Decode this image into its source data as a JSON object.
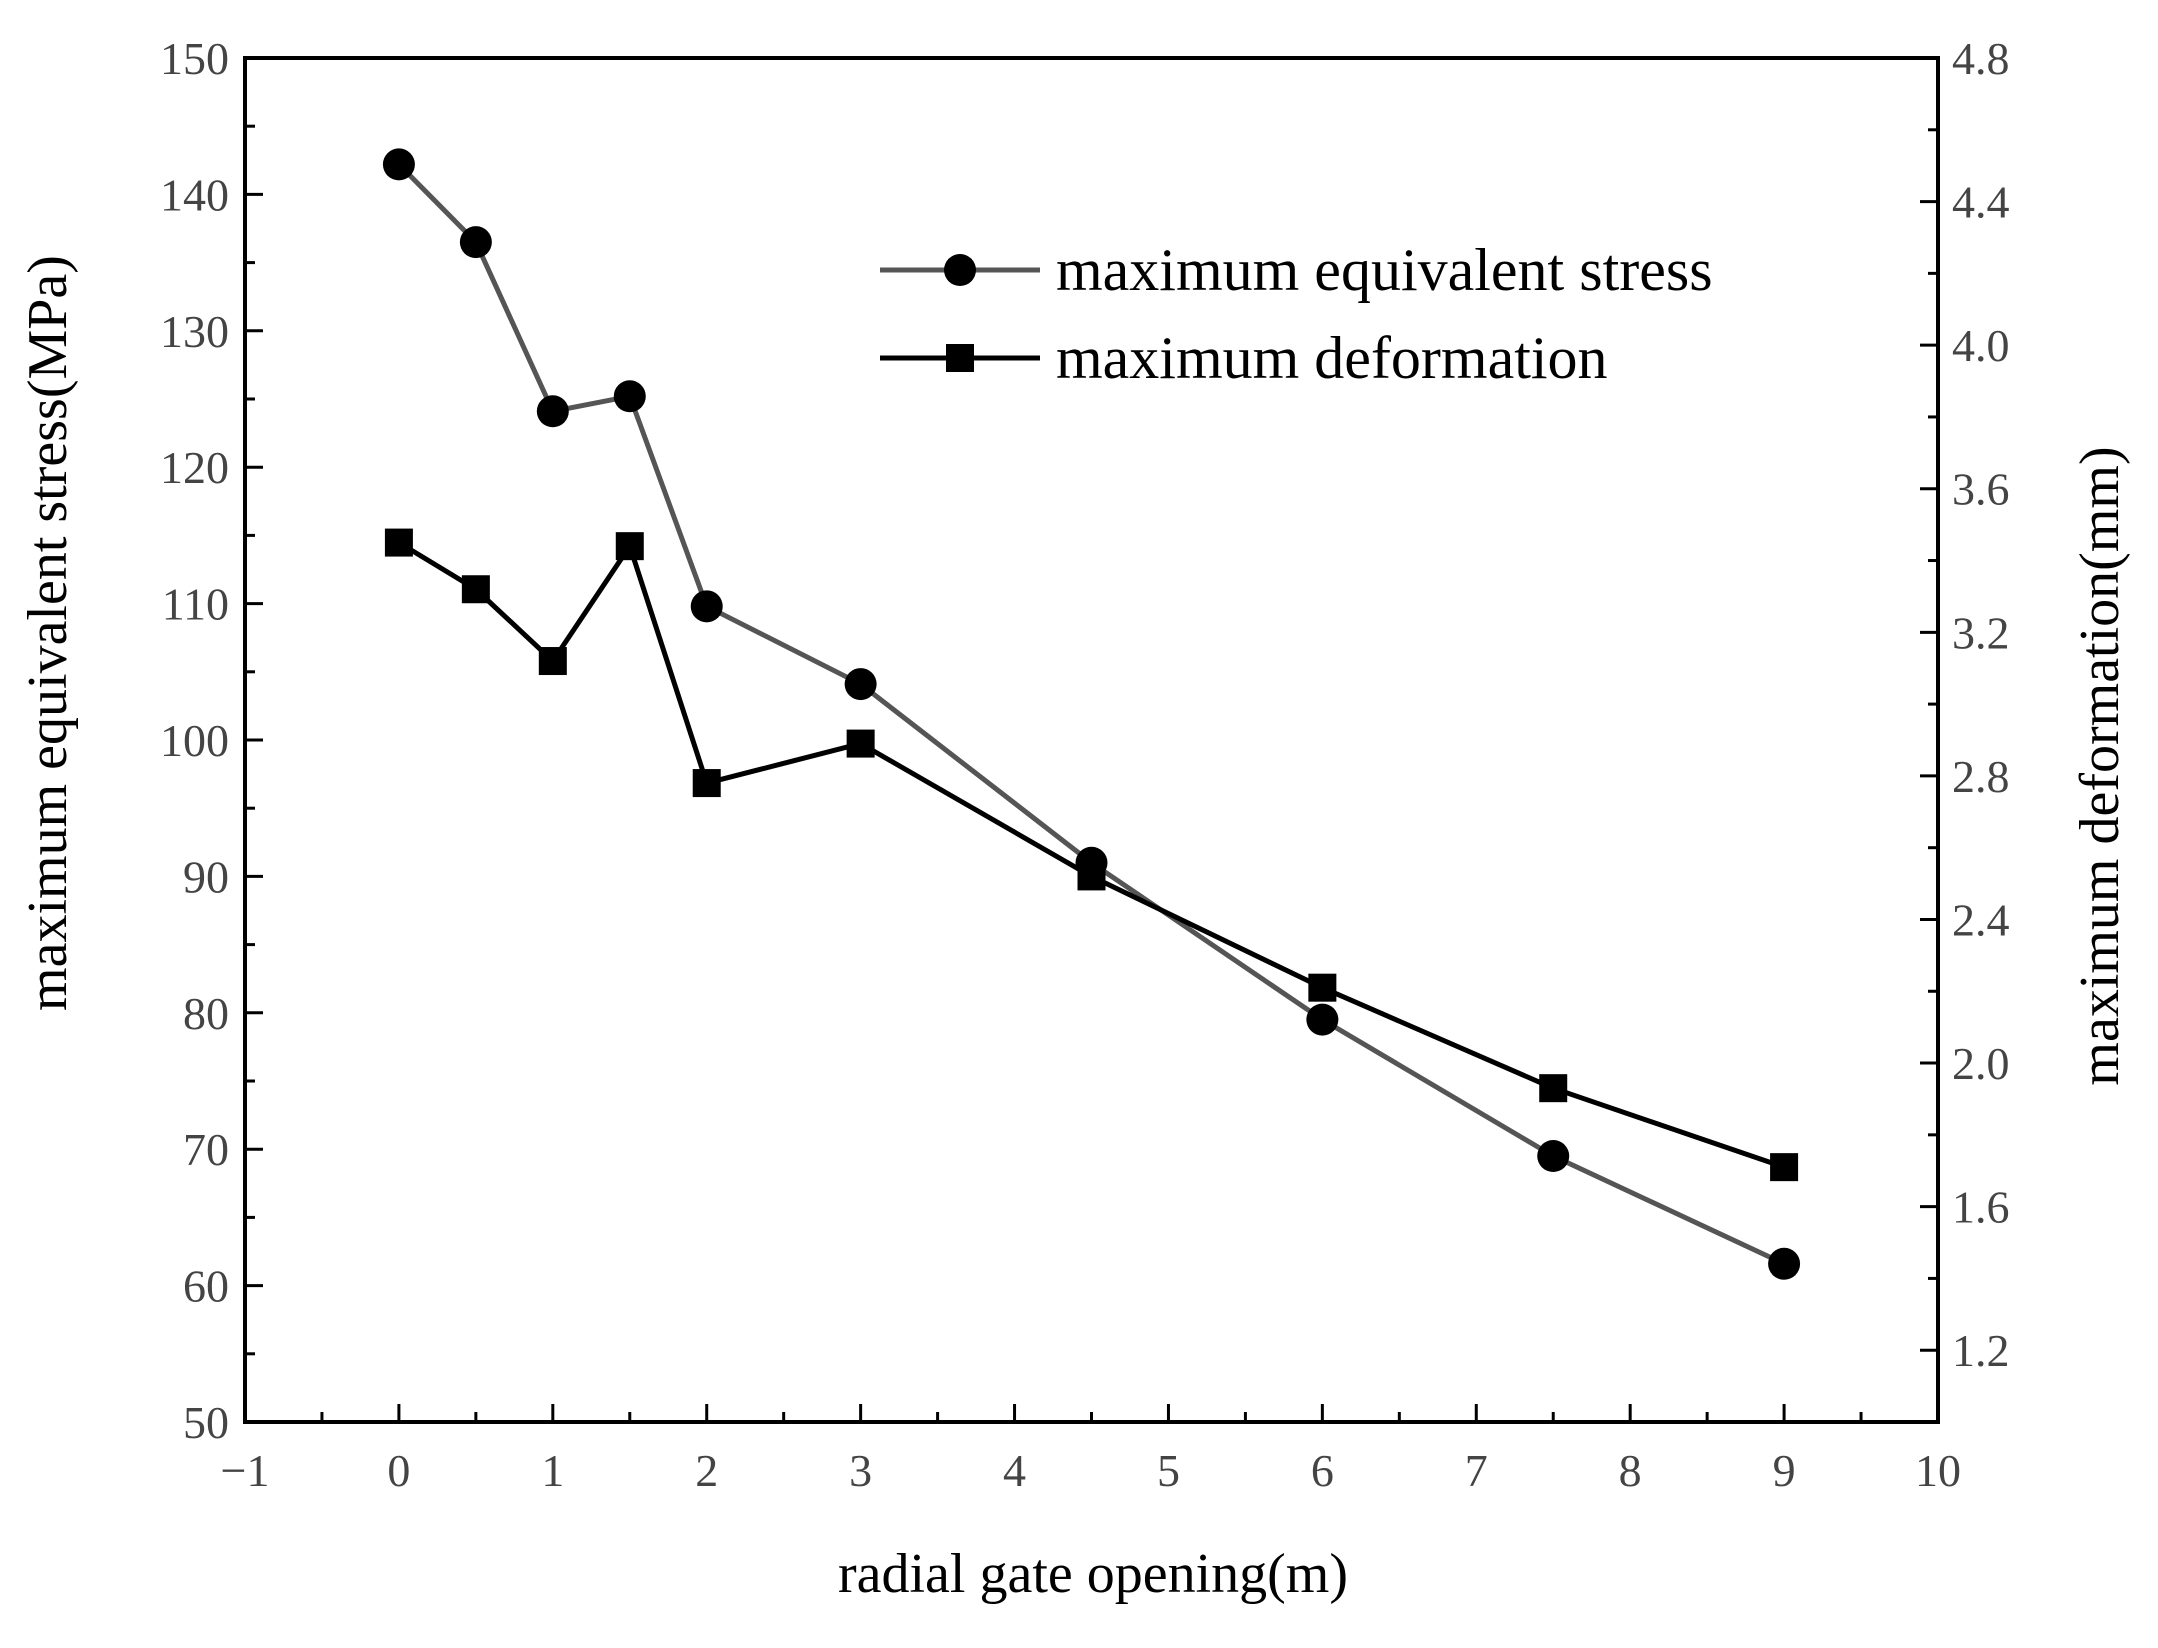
{
  "chart_data": {
    "type": "line",
    "title": "",
    "xlabel": "radial gate opening(m)",
    "ylabel": "maximum equivalent stress(MPa)",
    "y2label": "maximum deformation(mm)",
    "xlim": [
      -1,
      10
    ],
    "ylim": [
      50,
      150
    ],
    "y2lim": [
      1.0,
      4.8
    ],
    "x_ticks": [
      "−1",
      "0",
      "1",
      "2",
      "3",
      "4",
      "5",
      "6",
      "7",
      "8",
      "9",
      "10"
    ],
    "y_ticks": [
      "50",
      "60",
      "70",
      "80",
      "90",
      "100",
      "110",
      "120",
      "130",
      "140",
      "150"
    ],
    "y2_ticks": [
      "1.2",
      "1.6",
      "2.0",
      "2.4",
      "2.8",
      "3.2",
      "3.6",
      "4.0",
      "4.4",
      "4.8"
    ],
    "legend_position": "top-right",
    "grid": false,
    "series": [
      {
        "name": "maximum equivalent stress",
        "axis": "left",
        "marker": "circle",
        "color": "#555555",
        "x": [
          0,
          0.5,
          1,
          1.5,
          2,
          3,
          4.5,
          6,
          7.5,
          9
        ],
        "values": [
          142.2,
          136.5,
          124.1,
          125.2,
          109.8,
          104.1,
          91.0,
          79.5,
          69.5,
          61.6
        ]
      },
      {
        "name": "maximum deformation",
        "axis": "right",
        "marker": "square",
        "color": "#000000",
        "x": [
          0,
          0.5,
          1,
          1.5,
          2,
          3,
          4.5,
          6,
          7.5,
          9
        ],
        "values": [
          3.45,
          3.32,
          3.12,
          3.44,
          2.78,
          2.89,
          2.52,
          2.21,
          1.93,
          1.71
        ]
      }
    ]
  }
}
